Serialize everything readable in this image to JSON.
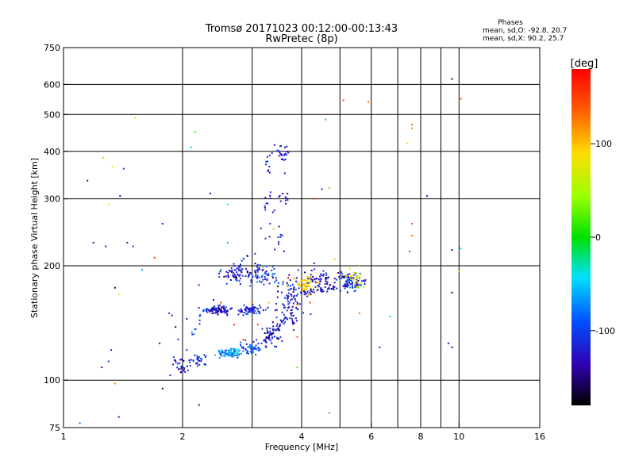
{
  "chart_data": {
    "type": "scatter",
    "title": "Tromsø 20171023 00:12:00-00:13:43",
    "subtitle": "RwPretec (8p)",
    "stats": {
      "heading": "Phases",
      "line1": "mean, sd,O: -92.8, 20.7",
      "line2": "mean, sd,X:  90.2, 25.7"
    },
    "xlabel": "Frequency [MHz]",
    "ylabel": "Stationary phase Virtual Height [km]",
    "x_scale": "log",
    "y_scale": "log",
    "xlim": [
      1,
      16
    ],
    "ylim": [
      75,
      750
    ],
    "x_ticks": [
      1,
      2,
      4,
      6,
      8,
      10,
      16
    ],
    "x_tick_labels": [
      "1",
      "2",
      "4",
      "6",
      "8",
      "10",
      "16"
    ],
    "x_grid": [
      2,
      3,
      4,
      5,
      6,
      7,
      8,
      9,
      10
    ],
    "y_ticks": [
      75,
      100,
      200,
      300,
      400,
      500,
      600,
      750
    ],
    "y_tick_labels": [
      "75",
      "100",
      "200",
      "300",
      "400",
      "500",
      "600",
      "750"
    ],
    "y_grid": [
      100,
      200,
      300,
      400,
      500,
      600
    ],
    "grid": true,
    "colorbar": {
      "label": "[deg]",
      "range": [
        -180,
        180
      ],
      "ticks": [
        100,
        0,
        -100
      ],
      "tick_labels": [
        "100",
        "0",
        "-100"
      ]
    },
    "series": [
      {
        "points": [
          [
            1.15,
            335,
            -140
          ],
          [
            1.26,
            385,
            95
          ],
          [
            1.33,
            365,
            85
          ],
          [
            1.19,
            230,
            -120
          ],
          [
            1.28,
            225,
            -130
          ],
          [
            1.39,
            305,
            -130
          ],
          [
            1.45,
            230,
            -120
          ],
          [
            1.5,
            225,
            -110
          ],
          [
            1.42,
            360,
            -100
          ],
          [
            1.3,
            290,
            80
          ],
          [
            1.35,
            175,
            -160
          ],
          [
            1.38,
            168,
            90
          ],
          [
            1.32,
            120,
            -120
          ],
          [
            1.3,
            112,
            -100
          ],
          [
            1.35,
            98,
            120
          ],
          [
            1.25,
            108,
            -140
          ],
          [
            1.38,
            80,
            -130
          ],
          [
            1.52,
            490,
            70
          ],
          [
            1.58,
            195,
            -60
          ],
          [
            1.7,
            210,
            150
          ],
          [
            1.75,
            125,
            -130
          ],
          [
            1.78,
            95,
            -160
          ],
          [
            1.78,
            258,
            -120
          ],
          [
            2.15,
            450,
            10
          ],
          [
            2.1,
            410,
            -50
          ],
          [
            2.35,
            310,
            -150
          ],
          [
            2.2,
            86,
            -150
          ],
          [
            1.1,
            77,
            -80
          ],
          [
            1.5,
            75,
            30
          ],
          [
            4.6,
            485,
            -20
          ],
          [
            4.5,
            318,
            -100
          ],
          [
            4.7,
            320,
            110
          ],
          [
            4.3,
            300,
            150
          ],
          [
            5.1,
            545,
            140
          ],
          [
            5.9,
            540,
            130
          ],
          [
            7.6,
            470,
            140
          ],
          [
            7.6,
            460,
            120
          ],
          [
            7.4,
            420,
            90
          ],
          [
            8.3,
            305,
            -130
          ],
          [
            7.6,
            258,
            140
          ],
          [
            7.6,
            240,
            130
          ],
          [
            7.5,
            218,
            150
          ],
          [
            9.6,
            620,
            -150
          ],
          [
            10.1,
            550,
            140
          ],
          [
            9.6,
            220,
            -150
          ],
          [
            10.1,
            222,
            -40
          ],
          [
            9.6,
            170,
            -150
          ],
          [
            9.4,
            125,
            -130
          ],
          [
            9.6,
            122,
            -140
          ],
          [
            10.0,
            193,
            110
          ],
          [
            6.7,
            147,
            -40
          ],
          [
            6.3,
            122,
            -110
          ],
          [
            5.6,
            150,
            130
          ],
          [
            4.7,
            82,
            -60
          ],
          [
            3.9,
            108,
            20
          ],
          [
            3.9,
            130,
            150
          ],
          [
            3.2,
            198,
            20
          ],
          [
            3.5,
            180,
            -90
          ],
          [
            3.9,
            158,
            130
          ],
          [
            3.3,
            160,
            100
          ],
          [
            3.05,
            215,
            -100
          ],
          [
            3.4,
            250,
            40
          ],
          [
            2.6,
            230,
            -60
          ],
          [
            2.6,
            290,
            -40
          ],
          [
            2.5,
            195,
            -80
          ],
          [
            2.5,
            160,
            160
          ],
          [
            2.2,
            178,
            -100
          ],
          [
            2.2,
            155,
            -110
          ],
          [
            2.05,
            145,
            -130
          ],
          [
            1.88,
            148,
            -120
          ],
          [
            1.85,
            150,
            -110
          ],
          [
            1.92,
            138,
            -150
          ],
          [
            1.95,
            128,
            -110
          ],
          [
            1.9,
            115,
            -100
          ],
          [
            2.05,
            120,
            -110
          ],
          [
            3.0,
            160,
            130
          ],
          [
            2.8,
            185,
            -130
          ],
          [
            4.2,
            160,
            150
          ],
          [
            4.3,
            203,
            -130
          ],
          [
            4.15,
            178,
            80
          ],
          [
            4.6,
            186,
            -150
          ],
          [
            3.1,
            140,
            150
          ],
          [
            2.7,
            140,
            160
          ],
          [
            2.85,
            128,
            150
          ],
          [
            3.7,
            186,
            180
          ],
          [
            4.85,
            208,
            100
          ],
          [
            5.6,
            200,
            110
          ]
        ],
        "clusters": [
          {
            "cx": 2.45,
            "cy": 153,
            "sx": 0.018,
            "sy": 0.0055,
            "n": 90,
            "ph": [
              -125,
              18
            ]
          },
          {
            "cx": 2.95,
            "cy": 153,
            "sx": 0.016,
            "sy": 0.005,
            "n": 70,
            "ph": [
              -115,
              18
            ]
          },
          {
            "cx": 1.98,
            "cy": 108,
            "sx": 0.012,
            "sy": 0.01,
            "n": 28,
            "ph": [
              -120,
              15
            ]
          },
          {
            "cx": 2.2,
            "cy": 112,
            "sx": 0.012,
            "sy": 0.009,
            "n": 28,
            "ph": [
              -110,
              15
            ]
          },
          {
            "cx": 2.62,
            "cy": 118,
            "sx": 0.016,
            "sy": 0.006,
            "n": 80,
            "ph": [
              -70,
              22
            ]
          },
          {
            "cx": 3.0,
            "cy": 121,
            "sx": 0.015,
            "sy": 0.008,
            "n": 50,
            "ph": [
              -95,
              20
            ]
          },
          {
            "cx": 3.35,
            "cy": 132,
            "sx": 0.014,
            "sy": 0.014,
            "n": 40,
            "ph": [
              -120,
              15
            ]
          },
          {
            "cx": 3.7,
            "cy": 150,
            "sx": 0.016,
            "sy": 0.015,
            "n": 40,
            "ph": [
              -120,
              15
            ]
          },
          {
            "cx": 2.75,
            "cy": 190,
            "sx": 0.02,
            "sy": 0.012,
            "n": 55,
            "ph": [
              -125,
              15
            ]
          },
          {
            "cx": 3.15,
            "cy": 190,
            "sx": 0.02,
            "sy": 0.014,
            "n": 55,
            "ph": [
              -110,
              20
            ]
          },
          {
            "cx": 3.75,
            "cy": 170,
            "sx": 0.016,
            "sy": 0.02,
            "n": 55,
            "ph": [
              -120,
              15
            ]
          },
          {
            "cx": 4.1,
            "cy": 178,
            "sx": 0.014,
            "sy": 0.012,
            "n": 55,
            "ph": [
              95,
              15
            ]
          },
          {
            "cx": 4.45,
            "cy": 185,
            "sx": 0.014,
            "sy": 0.012,
            "n": 45,
            "ph": [
              -125,
              15
            ]
          },
          {
            "cx": 5.25,
            "cy": 183,
            "sx": 0.015,
            "sy": 0.012,
            "n": 60,
            "ph": [
              -110,
              30
            ]
          },
          {
            "cx": 5.45,
            "cy": 185,
            "sx": 0.01,
            "sy": 0.012,
            "n": 25,
            "ph": [
              80,
              20
            ]
          },
          {
            "cx": 3.6,
            "cy": 395,
            "sx": 0.008,
            "sy": 0.018,
            "n": 22,
            "ph": [
              -120,
              12
            ]
          },
          {
            "cx": 3.3,
            "cy": 280,
            "sx": 0.009,
            "sy": 0.03,
            "n": 14,
            "ph": [
              -120,
              12
            ]
          },
          {
            "cx": 3.6,
            "cy": 300,
            "sx": 0.007,
            "sy": 0.01,
            "n": 10,
            "ph": [
              -120,
              10
            ]
          },
          {
            "cx": 3.45,
            "cy": 228,
            "sx": 0.01,
            "sy": 0.02,
            "n": 10,
            "ph": [
              -120,
              10
            ]
          }
        ],
        "ridges": [
          {
            "x1": 3.2,
            "y1": 124,
            "x2": 3.9,
            "y2": 160,
            "n": 35,
            "ph": [
              -130,
              15
            ]
          },
          {
            "x1": 4.0,
            "y1": 170,
            "x2": 5.9,
            "y2": 182,
            "n": 65,
            "ph": [
              -125,
              15
            ]
          },
          {
            "x1": 3.25,
            "y1": 340,
            "x2": 3.35,
            "y2": 420,
            "n": 12,
            "ph": [
              -120,
              12
            ]
          },
          {
            "x1": 2.1,
            "y1": 130,
            "x2": 2.4,
            "y2": 170,
            "n": 12,
            "ph": [
              -100,
              20
            ]
          },
          {
            "x1": 2.55,
            "y1": 185,
            "x2": 3.0,
            "y2": 220,
            "n": 14,
            "ph": [
              -120,
              15
            ]
          }
        ]
      }
    ]
  }
}
